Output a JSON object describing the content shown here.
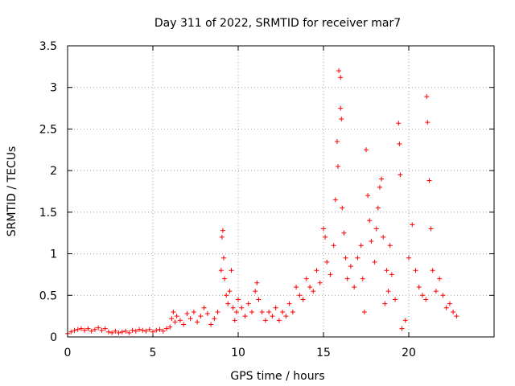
{
  "chart_data": {
    "type": "scatter",
    "title": "Day 311 of 2022, SRMTID for receiver mar7",
    "xlabel": "GPS time / hours",
    "ylabel": "SRMTID / TECUs",
    "xlim": [
      0,
      25
    ],
    "ylim": [
      0,
      3.5
    ],
    "xticks": [
      0,
      5,
      10,
      15,
      20
    ],
    "xtick_labels": [
      "0",
      "5",
      "10",
      "15",
      "20"
    ],
    "yticks": [
      0,
      0.5,
      1,
      1.5,
      2,
      2.5,
      3,
      3.5
    ],
    "ytick_labels": [
      "0",
      "0.5",
      "1",
      "1.5",
      "2",
      "2.5",
      "3",
      "3.5"
    ],
    "grid": true,
    "marker": "+",
    "series": [
      {
        "name": "SRMTID",
        "color": "#ff0000",
        "points": [
          [
            0.0,
            0.04
          ],
          [
            0.2,
            0.06
          ],
          [
            0.4,
            0.08
          ],
          [
            0.6,
            0.09
          ],
          [
            0.8,
            0.1
          ],
          [
            1.0,
            0.08
          ],
          [
            1.2,
            0.1
          ],
          [
            1.4,
            0.07
          ],
          [
            1.6,
            0.09
          ],
          [
            1.8,
            0.11
          ],
          [
            2.0,
            0.08
          ],
          [
            2.2,
            0.1
          ],
          [
            2.4,
            0.06
          ],
          [
            2.6,
            0.05
          ],
          [
            2.8,
            0.07
          ],
          [
            3.0,
            0.05
          ],
          [
            3.2,
            0.06
          ],
          [
            3.4,
            0.07
          ],
          [
            3.6,
            0.05
          ],
          [
            3.8,
            0.08
          ],
          [
            4.0,
            0.07
          ],
          [
            4.2,
            0.09
          ],
          [
            4.4,
            0.08
          ],
          [
            4.6,
            0.07
          ],
          [
            4.8,
            0.09
          ],
          [
            5.0,
            0.06
          ],
          [
            5.2,
            0.08
          ],
          [
            5.4,
            0.09
          ],
          [
            5.6,
            0.07
          ],
          [
            5.8,
            0.1
          ],
          [
            6.0,
            0.12
          ],
          [
            6.1,
            0.22
          ],
          [
            6.2,
            0.3
          ],
          [
            6.3,
            0.18
          ],
          [
            6.4,
            0.25
          ],
          [
            6.6,
            0.2
          ],
          [
            6.8,
            0.15
          ],
          [
            7.0,
            0.28
          ],
          [
            7.2,
            0.22
          ],
          [
            7.4,
            0.3
          ],
          [
            7.6,
            0.18
          ],
          [
            7.8,
            0.25
          ],
          [
            8.0,
            0.35
          ],
          [
            8.2,
            0.28
          ],
          [
            8.4,
            0.15
          ],
          [
            8.6,
            0.22
          ],
          [
            8.8,
            0.3
          ],
          [
            9.0,
            0.8
          ],
          [
            9.05,
            1.2
          ],
          [
            9.1,
            1.28
          ],
          [
            9.15,
            0.95
          ],
          [
            9.2,
            0.7
          ],
          [
            9.3,
            0.5
          ],
          [
            9.4,
            0.4
          ],
          [
            9.5,
            0.55
          ],
          [
            9.6,
            0.8
          ],
          [
            9.7,
            0.35
          ],
          [
            9.8,
            0.2
          ],
          [
            9.9,
            0.3
          ],
          [
            10.0,
            0.45
          ],
          [
            10.2,
            0.35
          ],
          [
            10.4,
            0.25
          ],
          [
            10.6,
            0.4
          ],
          [
            10.8,
            0.3
          ],
          [
            11.0,
            0.55
          ],
          [
            11.1,
            0.65
          ],
          [
            11.2,
            0.45
          ],
          [
            11.4,
            0.3
          ],
          [
            11.6,
            0.2
          ],
          [
            11.8,
            0.3
          ],
          [
            12.0,
            0.25
          ],
          [
            12.2,
            0.35
          ],
          [
            12.4,
            0.2
          ],
          [
            12.6,
            0.3
          ],
          [
            12.8,
            0.25
          ],
          [
            13.0,
            0.4
          ],
          [
            13.2,
            0.3
          ],
          [
            13.4,
            0.6
          ],
          [
            13.6,
            0.5
          ],
          [
            13.8,
            0.45
          ],
          [
            14.0,
            0.7
          ],
          [
            14.2,
            0.6
          ],
          [
            14.4,
            0.55
          ],
          [
            14.6,
            0.8
          ],
          [
            14.8,
            0.65
          ],
          [
            15.0,
            1.3
          ],
          [
            15.1,
            1.2
          ],
          [
            15.2,
            0.9
          ],
          [
            15.4,
            0.75
          ],
          [
            15.6,
            1.1
          ],
          [
            15.7,
            1.65
          ],
          [
            15.8,
            2.35
          ],
          [
            15.85,
            2.05
          ],
          [
            15.9,
            3.2
          ],
          [
            16.0,
            3.12
          ],
          [
            16.0,
            2.75
          ],
          [
            16.05,
            2.62
          ],
          [
            16.1,
            1.55
          ],
          [
            16.2,
            1.25
          ],
          [
            16.3,
            0.95
          ],
          [
            16.4,
            0.7
          ],
          [
            16.6,
            0.85
          ],
          [
            16.8,
            0.6
          ],
          [
            17.0,
            0.95
          ],
          [
            17.2,
            1.1
          ],
          [
            17.3,
            0.7
          ],
          [
            17.4,
            0.3
          ],
          [
            17.5,
            2.25
          ],
          [
            17.6,
            1.7
          ],
          [
            17.7,
            1.4
          ],
          [
            17.8,
            1.15
          ],
          [
            18.0,
            0.9
          ],
          [
            18.1,
            1.3
          ],
          [
            18.2,
            1.55
          ],
          [
            18.3,
            1.8
          ],
          [
            18.4,
            1.9
          ],
          [
            18.5,
            1.2
          ],
          [
            18.6,
            0.4
          ],
          [
            18.7,
            0.8
          ],
          [
            18.8,
            0.55
          ],
          [
            18.9,
            1.1
          ],
          [
            19.0,
            0.75
          ],
          [
            19.2,
            0.45
          ],
          [
            19.4,
            2.57
          ],
          [
            19.45,
            2.32
          ],
          [
            19.5,
            1.95
          ],
          [
            19.6,
            0.1
          ],
          [
            19.8,
            0.2
          ],
          [
            20.0,
            0.95
          ],
          [
            20.2,
            1.35
          ],
          [
            20.4,
            0.8
          ],
          [
            20.6,
            0.6
          ],
          [
            20.8,
            0.5
          ],
          [
            21.0,
            0.45
          ],
          [
            21.05,
            2.89
          ],
          [
            21.1,
            2.58
          ],
          [
            21.2,
            1.88
          ],
          [
            21.3,
            1.3
          ],
          [
            21.4,
            0.8
          ],
          [
            21.6,
            0.55
          ],
          [
            21.8,
            0.7
          ],
          [
            22.0,
            0.5
          ],
          [
            22.2,
            0.35
          ],
          [
            22.4,
            0.4
          ],
          [
            22.6,
            0.3
          ],
          [
            22.8,
            0.25
          ]
        ]
      }
    ]
  }
}
